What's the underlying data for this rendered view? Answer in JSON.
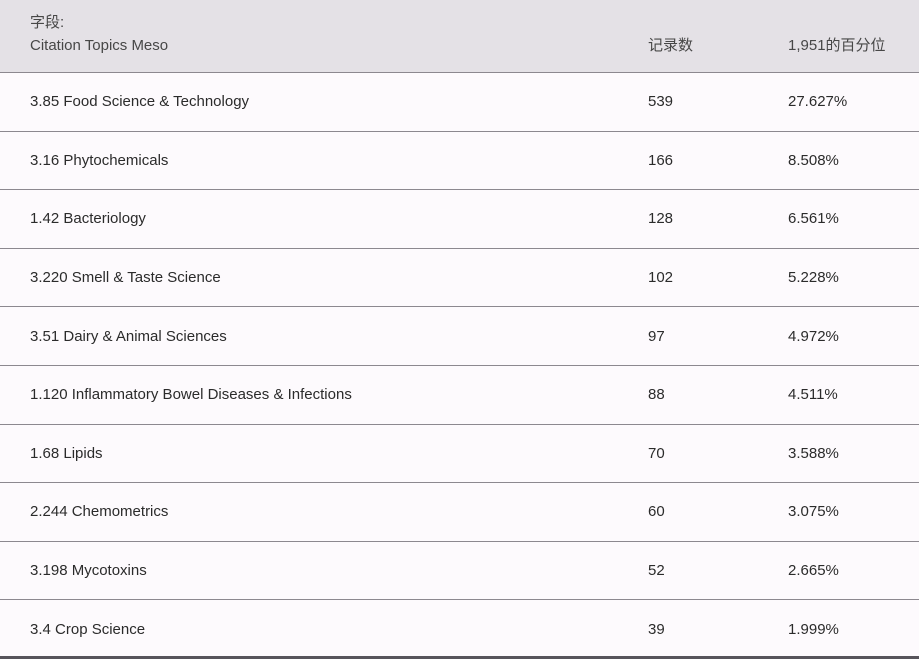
{
  "table": {
    "field_label": "字段:",
    "field_name": "Citation Topics Meso",
    "columns": {
      "records": "记录数",
      "percentile": "1,951的百分位"
    },
    "rows": [
      {
        "topic": "3.85 Food Science & Technology",
        "records": "539",
        "percent": "27.627%"
      },
      {
        "topic": "3.16 Phytochemicals",
        "records": "166",
        "percent": "8.508%"
      },
      {
        "topic": "1.42 Bacteriology",
        "records": "128",
        "percent": "6.561%"
      },
      {
        "topic": "3.220 Smell & Taste Science",
        "records": "102",
        "percent": "5.228%"
      },
      {
        "topic": "3.51 Dairy & Animal Sciences",
        "records": "97",
        "percent": "4.972%"
      },
      {
        "topic": "1.120 Inflammatory Bowel Diseases & Infections",
        "records": "88",
        "percent": "4.511%"
      },
      {
        "topic": "1.68 Lipids",
        "records": "70",
        "percent": "3.588%"
      },
      {
        "topic": "2.244 Chemometrics",
        "records": "60",
        "percent": "3.075%"
      },
      {
        "topic": "3.198 Mycotoxins",
        "records": "52",
        "percent": "2.665%"
      },
      {
        "topic": "3.4 Crop Science",
        "records": "39",
        "percent": "1.999%"
      }
    ],
    "colors": {
      "header_bg": "#e4e1e6",
      "row_bg": "#fdfafd",
      "separator": "#8c888f",
      "header_text": "#474747",
      "row_text": "#2b2b2b",
      "bottom_bar": "#57545b"
    }
  }
}
